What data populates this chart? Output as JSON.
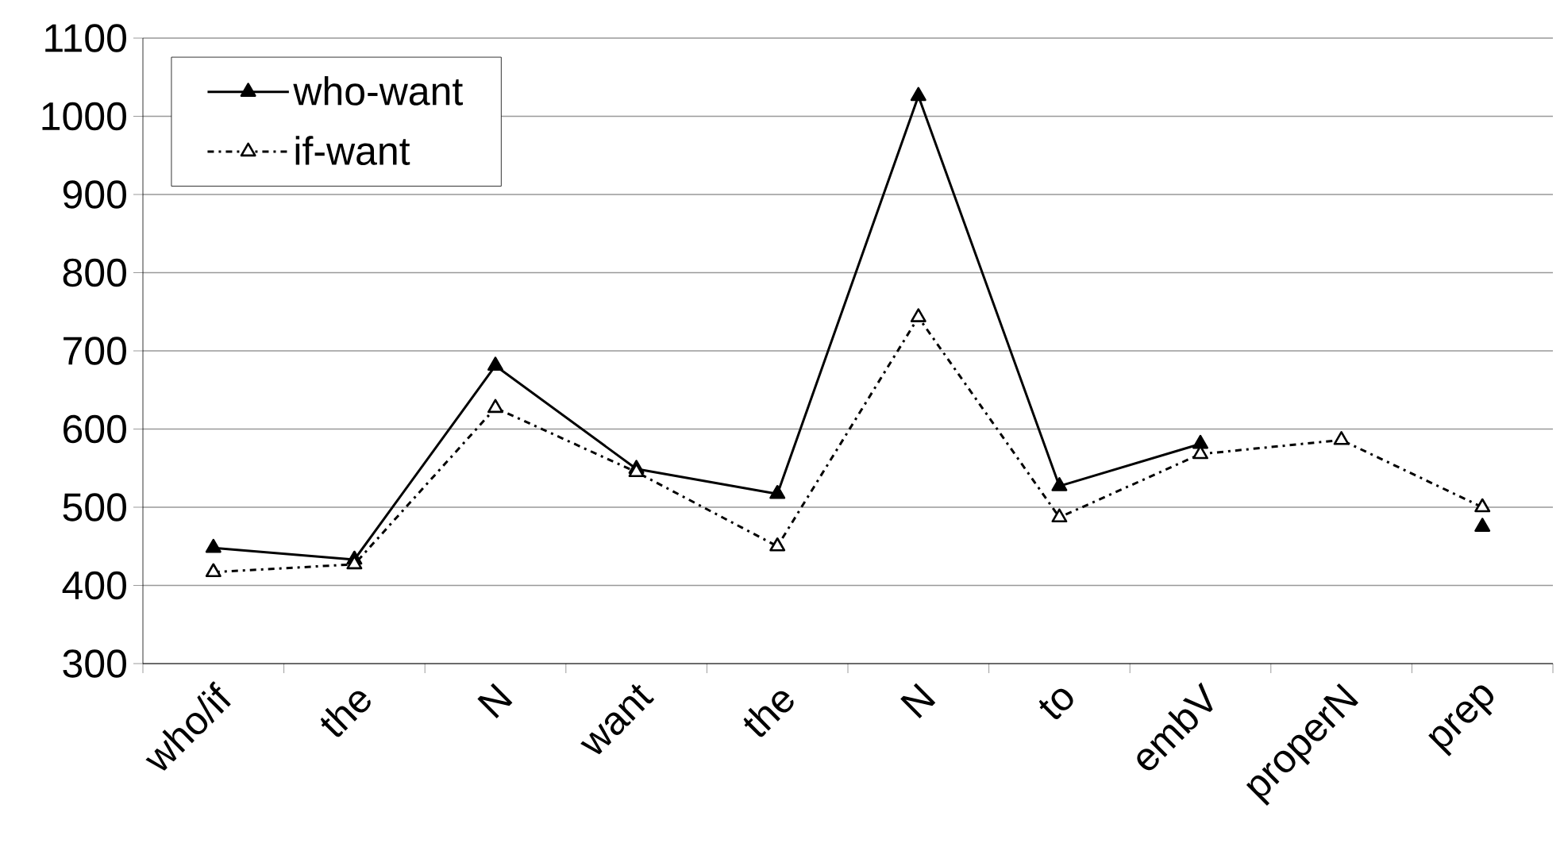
{
  "chart_data": {
    "type": "line",
    "categories": [
      "who/if",
      "the",
      "N",
      "want",
      "the",
      "N",
      "to",
      "embV",
      "properN",
      "prep"
    ],
    "series": [
      {
        "name": "who-want",
        "color": "#000000",
        "line_style": "solid",
        "values": [
          448,
          433,
          681,
          549,
          517,
          1026,
          527,
          581,
          null,
          475
        ]
      },
      {
        "name": "if-want",
        "color": "#000000",
        "line_style": "dashed",
        "values": [
          417,
          427,
          627,
          545,
          450,
          743,
          487,
          568,
          586,
          500
        ]
      }
    ],
    "ylim": [
      300,
      1100
    ],
    "yticks": [
      300,
      400,
      500,
      600,
      700,
      800,
      900,
      1000,
      1100
    ],
    "grid": "y",
    "legend": "top left",
    "marker": "triangle"
  }
}
